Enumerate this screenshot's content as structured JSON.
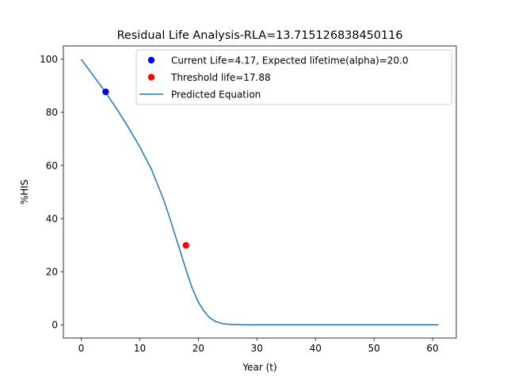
{
  "chart_data": {
    "type": "line",
    "title": "Residual Life Analysis-RLA=13.715126838450116",
    "xlabel": "Year (t)",
    "ylabel": "%HIS",
    "xlim": [
      -3.05,
      64.05
    ],
    "ylim": [
      -5,
      105
    ],
    "xticks": [
      0,
      10,
      20,
      30,
      40,
      50,
      60
    ],
    "yticks": [
      0,
      20,
      40,
      60,
      80,
      100
    ],
    "grid": false,
    "legend_position": "top-right",
    "series": [
      {
        "name": "Predicted Equation",
        "kind": "line",
        "color": "#1f77b4",
        "x": [
          0,
          2,
          4,
          6,
          8,
          10,
          12,
          14,
          15,
          16,
          17,
          18,
          19,
          20,
          21,
          22,
          23,
          24,
          25,
          26,
          27,
          28,
          30,
          35,
          40,
          45,
          50,
          55,
          61
        ],
        "y": [
          100,
          94,
          88,
          81.5,
          74.5,
          67,
          58.5,
          47.5,
          41,
          34,
          27,
          20,
          13.5,
          8.5,
          5,
          2.5,
          1.2,
          0.5,
          0.2,
          0.1,
          0.05,
          0,
          0,
          0,
          0,
          0,
          0,
          0,
          0
        ]
      },
      {
        "name": "Current Life=4.17, Expected lifetime(alpha)=20.0",
        "kind": "point",
        "color": "#0000ff",
        "x": [
          4.17
        ],
        "y": [
          87.7
        ]
      },
      {
        "name": "Threshold life=17.88",
        "kind": "point",
        "color": "#ff0000",
        "x": [
          17.88
        ],
        "y": [
          29.9
        ]
      }
    ]
  }
}
